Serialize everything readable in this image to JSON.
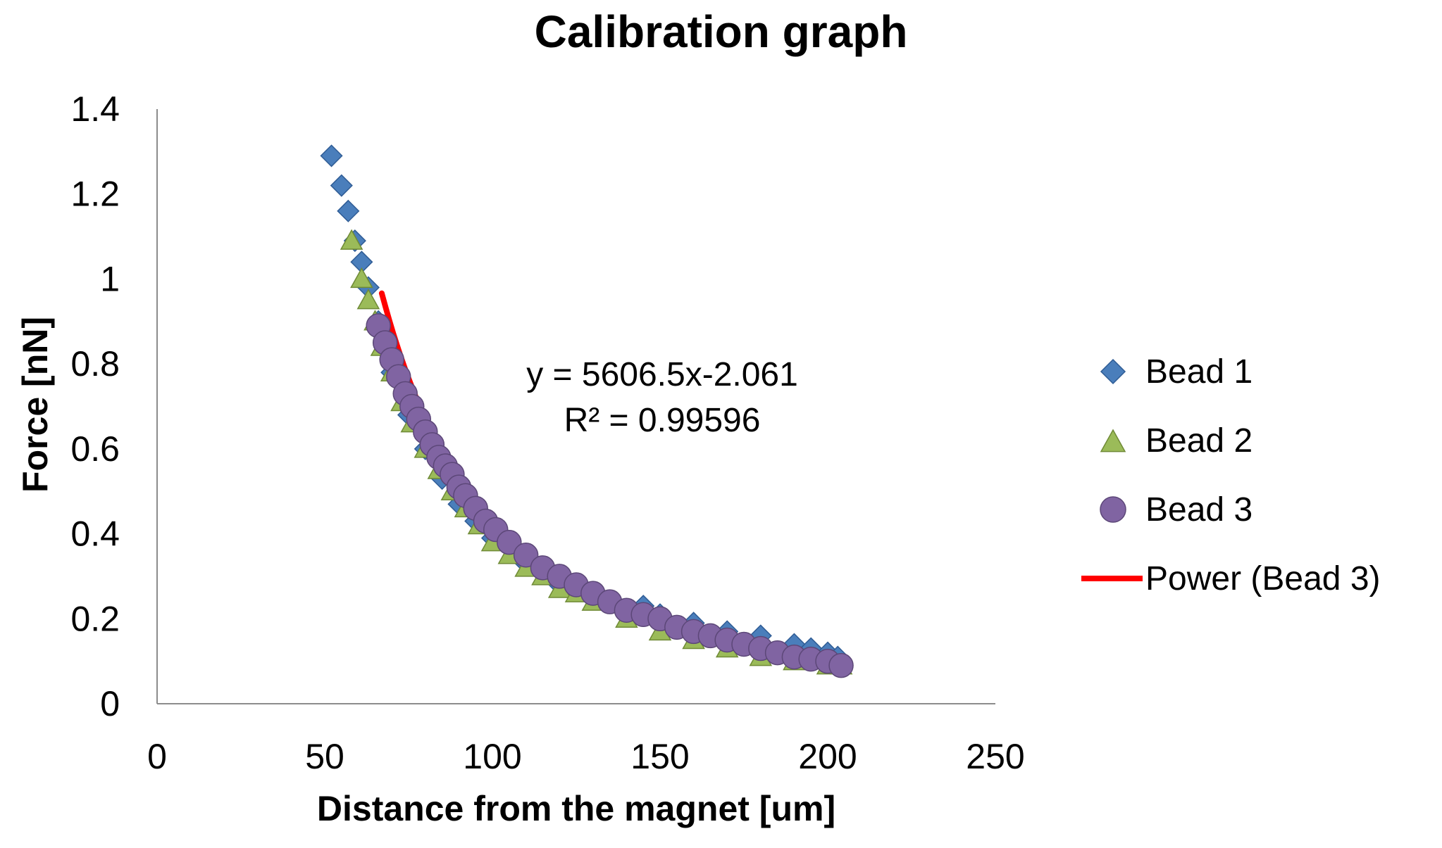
{
  "chart_data": {
    "type": "scatter",
    "title": "Calibration graph",
    "xlabel": "Distance from the magnet [um]",
    "ylabel": "Force [nN]",
    "xlim": [
      0,
      250
    ],
    "ylim": [
      0,
      1.4
    ],
    "x_ticks": [
      "0",
      "50",
      "100",
      "150",
      "200",
      "250"
    ],
    "y_ticks": [
      "0",
      "0.2",
      "0.4",
      "0.6",
      "0.8",
      "1",
      "1.2",
      "1.4"
    ],
    "grid": false,
    "legend_position": "right",
    "series": [
      {
        "name": "Bead 1",
        "marker": "diamond",
        "color": "#4a7ebb",
        "x": [
          52,
          55,
          57,
          59,
          61,
          63,
          66,
          70,
          75,
          80,
          85,
          90,
          95,
          100,
          110,
          120,
          130,
          140,
          145,
          150,
          160,
          170,
          180,
          190,
          195,
          200,
          203
        ],
        "y": [
          1.29,
          1.22,
          1.16,
          1.09,
          1.04,
          0.98,
          0.9,
          0.78,
          0.68,
          0.6,
          0.53,
          0.47,
          0.43,
          0.39,
          0.33,
          0.28,
          0.25,
          0.22,
          0.23,
          0.21,
          0.19,
          0.17,
          0.16,
          0.14,
          0.13,
          0.12,
          0.11
        ]
      },
      {
        "name": "Bead 2",
        "marker": "triangle",
        "color": "#9bbb59",
        "x": [
          58,
          61,
          63,
          65,
          67,
          70,
          73,
          76,
          80,
          84,
          88,
          92,
          96,
          100,
          105,
          110,
          115,
          120,
          125,
          130,
          140,
          150,
          160,
          170,
          180,
          190,
          200,
          204
        ],
        "y": [
          1.09,
          1.0,
          0.95,
          0.9,
          0.84,
          0.78,
          0.71,
          0.66,
          0.6,
          0.55,
          0.5,
          0.46,
          0.42,
          0.38,
          0.35,
          0.32,
          0.3,
          0.27,
          0.26,
          0.24,
          0.2,
          0.17,
          0.15,
          0.13,
          0.11,
          0.1,
          0.09,
          0.09
        ]
      },
      {
        "name": "Bead 3",
        "marker": "circle",
        "color": "#8064a2",
        "x": [
          66,
          68,
          70,
          72,
          74,
          76,
          78,
          80,
          82,
          84,
          86,
          88,
          90,
          92,
          95,
          98,
          101,
          105,
          110,
          115,
          120,
          125,
          130,
          135,
          140,
          145,
          150,
          155,
          160,
          165,
          170,
          175,
          180,
          185,
          190,
          195,
          200,
          204
        ],
        "y": [
          0.89,
          0.85,
          0.81,
          0.77,
          0.73,
          0.7,
          0.67,
          0.64,
          0.61,
          0.58,
          0.56,
          0.54,
          0.51,
          0.49,
          0.46,
          0.43,
          0.41,
          0.38,
          0.35,
          0.32,
          0.3,
          0.28,
          0.26,
          0.24,
          0.22,
          0.21,
          0.2,
          0.18,
          0.17,
          0.16,
          0.15,
          0.14,
          0.13,
          0.12,
          0.11,
          0.105,
          0.1,
          0.09
        ]
      }
    ],
    "trendline": {
      "name": "Power (Bead 3)",
      "type": "power",
      "color": "#ff0000",
      "coefficient": 5606.5,
      "exponent": -2.061,
      "x_range": [
        67,
        204
      ]
    },
    "annotation": {
      "equation": "y = 5606.5x-2.061",
      "r_squared": "R² = 0.99596"
    }
  }
}
